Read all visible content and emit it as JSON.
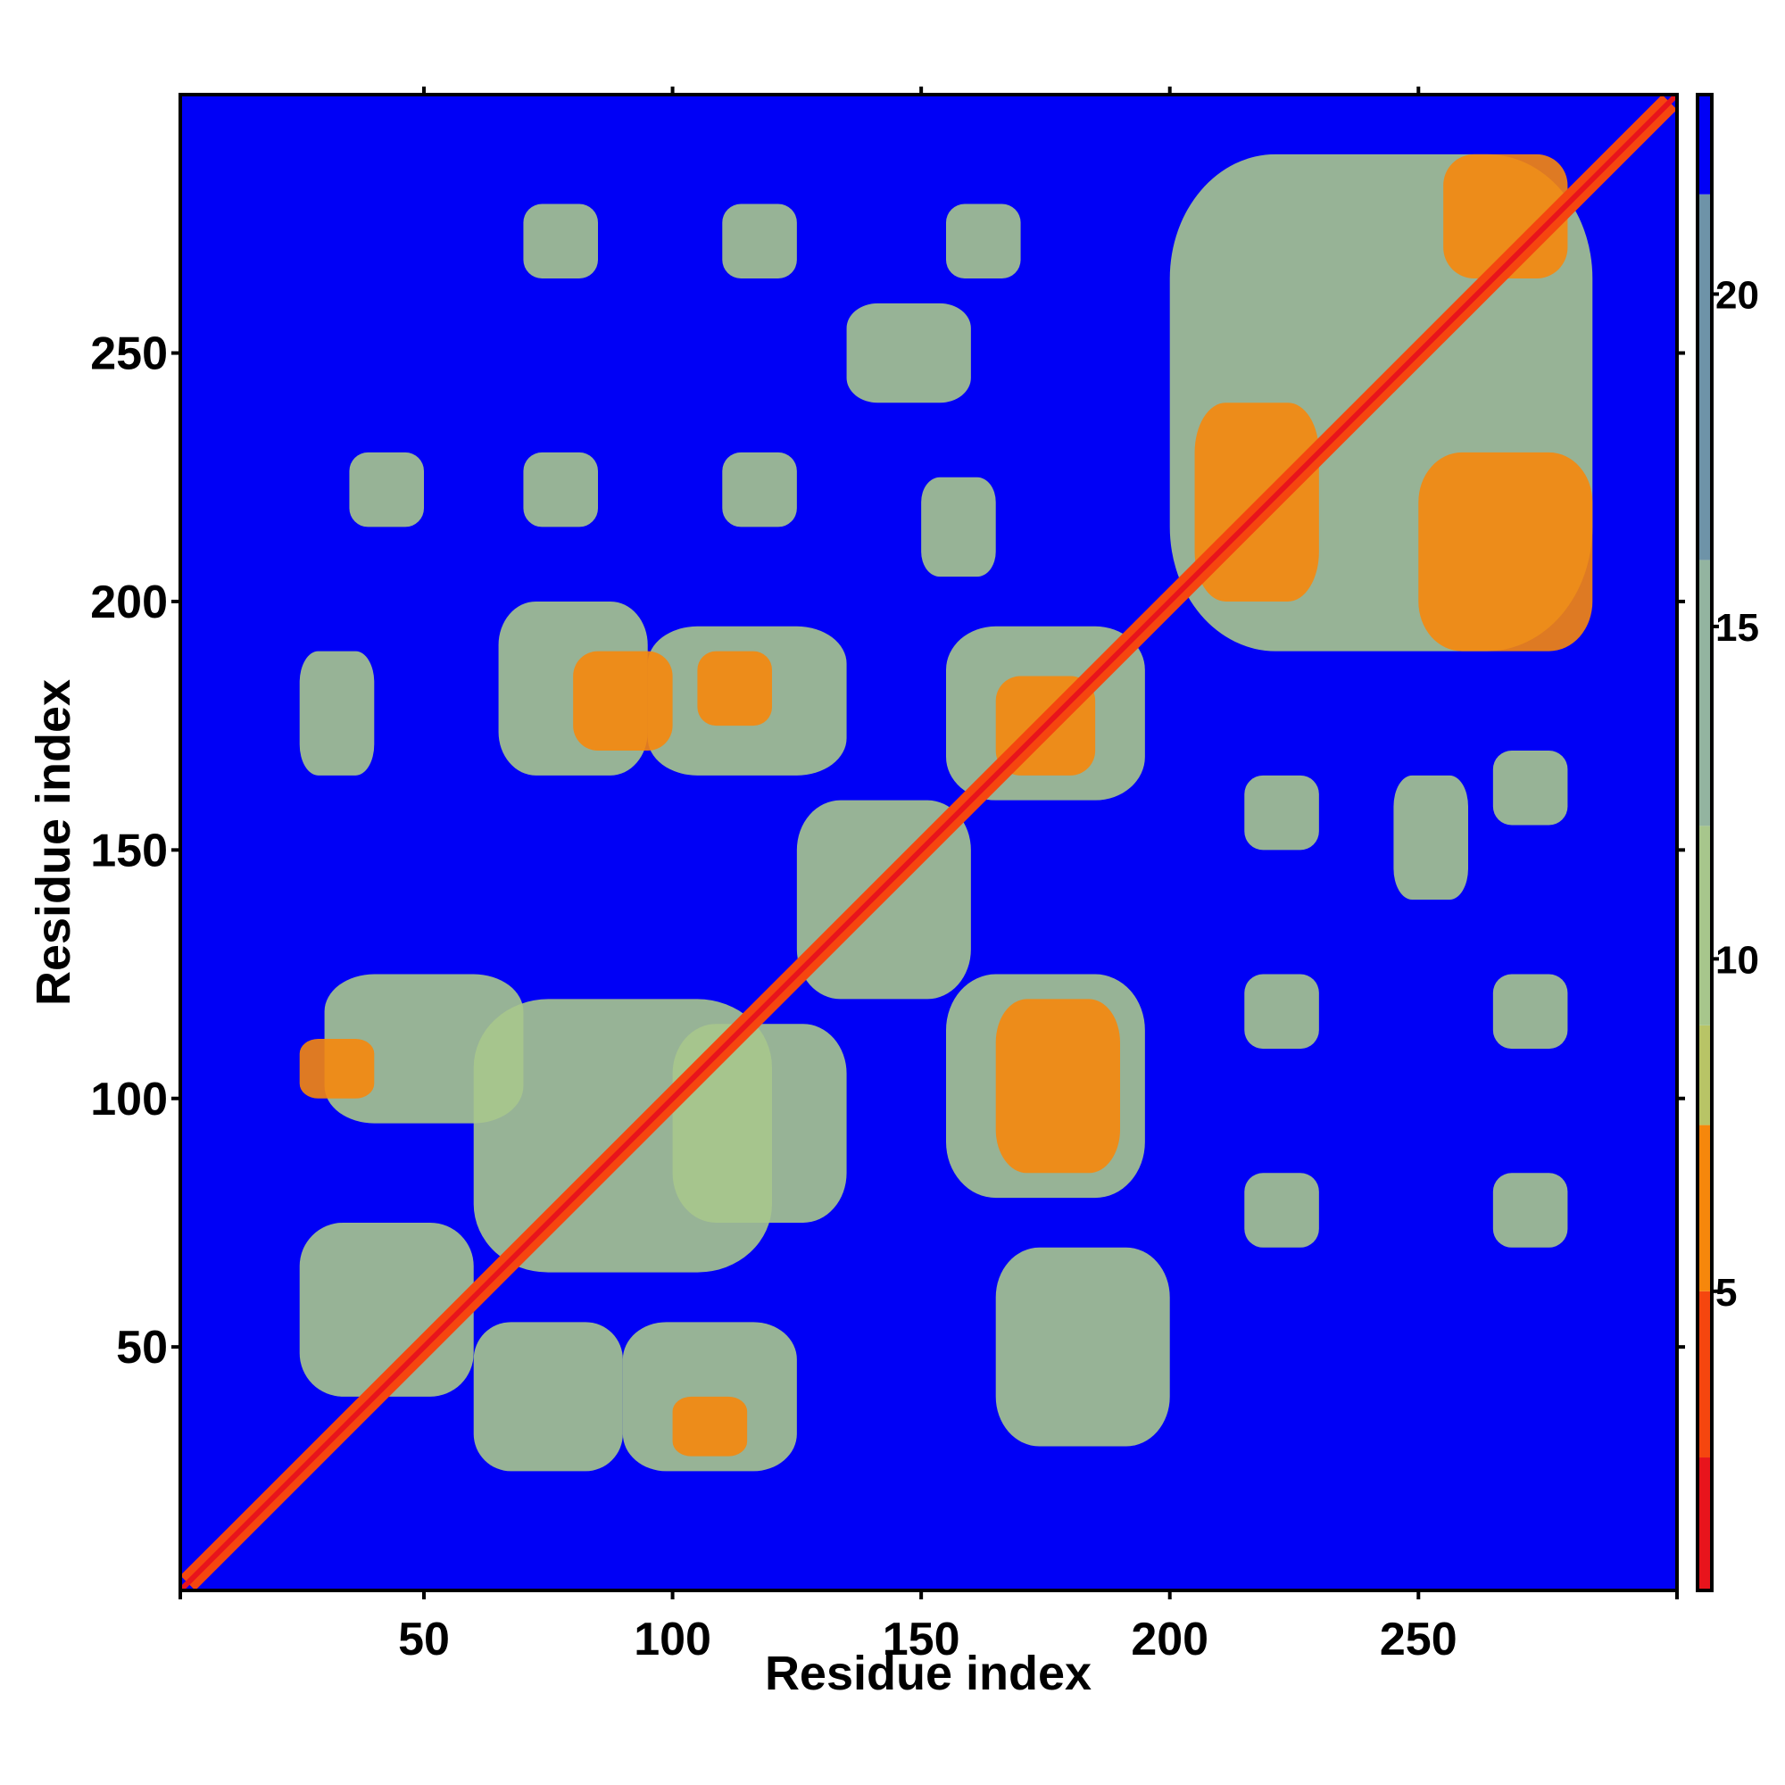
{
  "chart_data": {
    "type": "heatmap",
    "title": "",
    "xlabel": "Residue index",
    "ylabel": "Residue index",
    "xlim": [
      1,
      302
    ],
    "ylim": [
      1,
      302
    ],
    "x_ticks": [
      50,
      100,
      150,
      200,
      250
    ],
    "y_ticks": [
      50,
      100,
      150,
      200,
      250
    ],
    "x_tick_labels": [
      "50",
      "100",
      "150",
      "200",
      "250"
    ],
    "y_tick_labels": [
      "50",
      "100",
      "150",
      "200",
      "250"
    ],
    "colorbar": {
      "range": [
        0.5,
        23
      ],
      "ticks": [
        5,
        10,
        15,
        20
      ],
      "tick_labels": [
        "5",
        "10",
        "15",
        "20"
      ],
      "bands": [
        {
          "from": 0.5,
          "to": 2.5,
          "color": "#e8141c"
        },
        {
          "from": 2.5,
          "to": 5.0,
          "color": "#f5460f"
        },
        {
          "from": 5.0,
          "to": 7.5,
          "color": "#f6870c"
        },
        {
          "from": 7.5,
          "to": 9.0,
          "color": "#b8c466"
        },
        {
          "from": 9.0,
          "to": 12.0,
          "color": "#a7c68c"
        },
        {
          "from": 12.0,
          "to": 16.0,
          "color": "#93b4a0"
        },
        {
          "from": 16.0,
          "to": 21.5,
          "color": "#6e93a8"
        },
        {
          "from": 21.5,
          "to": 23.0,
          "color": "#0000f6"
        }
      ]
    },
    "background_value": 22,
    "diagonal_band_width": 3,
    "contact_regions": [
      {
        "x": [
          25,
          40
        ],
        "y": [
          165,
          190
        ],
        "value": 11
      },
      {
        "x": [
          65,
          95
        ],
        "y": [
          165,
          200
        ],
        "value": 11
      },
      {
        "x": [
          95,
          135
        ],
        "y": [
          165,
          195
        ],
        "value": 10
      },
      {
        "x": [
          80,
          100
        ],
        "y": [
          170,
          190
        ],
        "value": 6
      },
      {
        "x": [
          105,
          120
        ],
        "y": [
          175,
          190
        ],
        "value": 6
      },
      {
        "x": [
          155,
          195
        ],
        "y": [
          160,
          195
        ],
        "value": 11
      },
      {
        "x": [
          165,
          185
        ],
        "y": [
          165,
          185
        ],
        "value": 6
      },
      {
        "x": [
          25,
          60
        ],
        "y": [
          40,
          75
        ],
        "value": 11
      },
      {
        "x": [
          60,
          90
        ],
        "y": [
          25,
          55
        ],
        "value": 11
      },
      {
        "x": [
          90,
          125
        ],
        "y": [
          25,
          55
        ],
        "value": 11
      },
      {
        "x": [
          100,
          115
        ],
        "y": [
          28,
          40
        ],
        "value": 5
      },
      {
        "x": [
          30,
          70
        ],
        "y": [
          95,
          125
        ],
        "value": 11
      },
      {
        "x": [
          25,
          40
        ],
        "y": [
          100,
          112
        ],
        "value": 5
      },
      {
        "x": [
          60,
          120
        ],
        "y": [
          65,
          120
        ],
        "value": 11
      },
      {
        "x": [
          100,
          135
        ],
        "y": [
          75,
          115
        ],
        "value": 11
      },
      {
        "x": [
          125,
          160
        ],
        "y": [
          120,
          160
        ],
        "value": 11
      },
      {
        "x": [
          155,
          195
        ],
        "y": [
          80,
          125
        ],
        "value": 11
      },
      {
        "x": [
          165,
          190
        ],
        "y": [
          85,
          120
        ],
        "value": 6
      },
      {
        "x": [
          165,
          200
        ],
        "y": [
          30,
          70
        ],
        "value": 11
      },
      {
        "x": [
          200,
          285
        ],
        "y": [
          190,
          290
        ],
        "value": 11
      },
      {
        "x": [
          205,
          230
        ],
        "y": [
          200,
          240
        ],
        "value": 6
      },
      {
        "x": [
          250,
          285
        ],
        "y": [
          190,
          230
        ],
        "value": 6
      },
      {
        "x": [
          255,
          280
        ],
        "y": [
          265,
          290
        ],
        "value": 6
      },
      {
        "x": [
          215,
          230
        ],
        "y": [
          150,
          165
        ],
        "value": 11
      },
      {
        "x": [
          245,
          260
        ],
        "y": [
          140,
          165
        ],
        "value": 11
      },
      {
        "x": [
          265,
          280
        ],
        "y": [
          155,
          170
        ],
        "value": 11
      },
      {
        "x": [
          215,
          230
        ],
        "y": [
          110,
          125
        ],
        "value": 11
      },
      {
        "x": [
          265,
          280
        ],
        "y": [
          110,
          125
        ],
        "value": 11
      },
      {
        "x": [
          215,
          230
        ],
        "y": [
          70,
          85
        ],
        "value": 11
      },
      {
        "x": [
          265,
          280
        ],
        "y": [
          70,
          85
        ],
        "value": 11
      },
      {
        "x": [
          70,
          85
        ],
        "y": [
          215,
          230
        ],
        "value": 11
      },
      {
        "x": [
          110,
          125
        ],
        "y": [
          215,
          230
        ],
        "value": 11
      },
      {
        "x": [
          150,
          165
        ],
        "y": [
          205,
          225
        ],
        "value": 11
      },
      {
        "x": [
          70,
          85
        ],
        "y": [
          265,
          280
        ],
        "value": 11
      },
      {
        "x": [
          110,
          125
        ],
        "y": [
          265,
          280
        ],
        "value": 11
      },
      {
        "x": [
          155,
          170
        ],
        "y": [
          265,
          280
        ],
        "value": 11
      },
      {
        "x": [
          135,
          160
        ],
        "y": [
          240,
          260
        ],
        "value": 11
      },
      {
        "x": [
          35,
          50
        ],
        "y": [
          215,
          230
        ],
        "value": 11
      }
    ]
  }
}
